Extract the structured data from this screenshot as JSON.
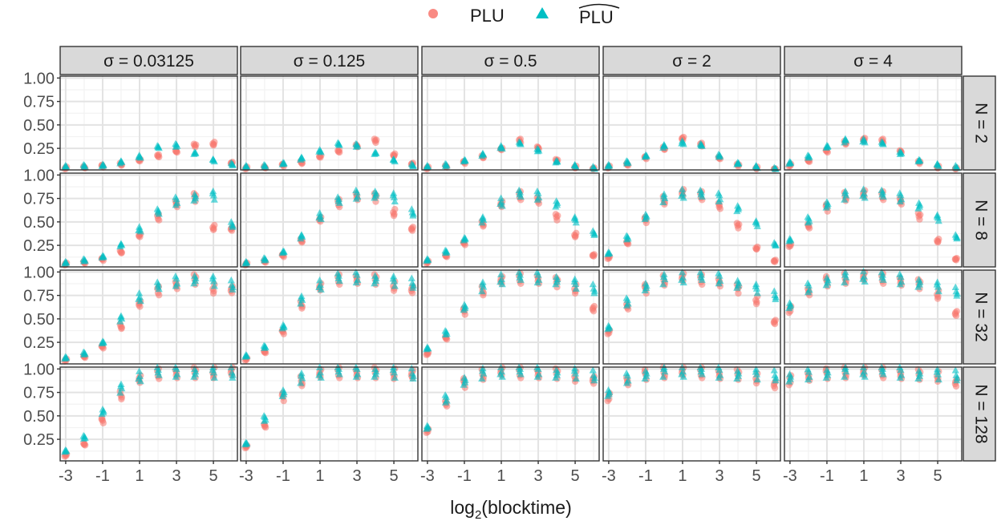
{
  "legend": {
    "items": [
      {
        "label": "PLU",
        "color": "#F8766D",
        "shape": "circle"
      },
      {
        "label": "PLU",
        "color": "#00BFC4",
        "shape": "triangle",
        "hat": true
      }
    ]
  },
  "axes": {
    "xlabel_base": "log",
    "xlabel_sub": "2",
    "xlabel_rest": "(blocktime)",
    "x_ticks": [
      "-3",
      "-1",
      "1",
      "3",
      "5"
    ],
    "y_ticks": [
      "0.25",
      "0.50",
      "0.75",
      "1.00"
    ]
  },
  "chart_data": {
    "type": "scatter",
    "facet_cols": [
      "σ = 0.03125",
      "σ = 0.125",
      "σ = 0.5",
      "σ = 2",
      "σ = 4"
    ],
    "facet_rows": [
      "N = 2",
      "N = 8",
      "N = 32",
      "N = 128"
    ],
    "x": [
      -3,
      -2,
      -1,
      0,
      1,
      2,
      3,
      4,
      5,
      6
    ],
    "xlim": [
      -3.3,
      6.3
    ],
    "ylim": [
      0.02,
      1.02
    ],
    "grid": true,
    "legend_position": "top",
    "series": [
      {
        "name": "PLU",
        "color": "#F8766D",
        "values": [
          [
            [
              0.04,
              0.05,
              0.06,
              0.08,
              0.12,
              0.17,
              0.22,
              0.28,
              0.3,
              0.09
            ],
            [
              0.04,
              0.05,
              0.07,
              0.1,
              0.16,
              0.22,
              0.28,
              0.33,
              0.18,
              0.08
            ],
            [
              0.04,
              0.06,
              0.1,
              0.16,
              0.24,
              0.33,
              0.26,
              0.12,
              0.05,
              0.03
            ],
            [
              0.05,
              0.08,
              0.15,
              0.25,
              0.35,
              0.29,
              0.15,
              0.07,
              0.04,
              0.02
            ],
            [
              0.07,
              0.12,
              0.22,
              0.31,
              0.34,
              0.33,
              0.22,
              0.1,
              0.05,
              0.03
            ]
          ],
          [
            [
              0.05,
              0.07,
              0.1,
              0.18,
              0.35,
              0.55,
              0.7,
              0.76,
              0.44,
              0.42
            ],
            [
              0.05,
              0.08,
              0.14,
              0.3,
              0.52,
              0.7,
              0.78,
              0.76,
              0.6,
              0.42
            ],
            [
              0.07,
              0.14,
              0.27,
              0.48,
              0.68,
              0.78,
              0.74,
              0.55,
              0.36,
              0.14
            ],
            [
              0.12,
              0.28,
              0.52,
              0.73,
              0.8,
              0.78,
              0.68,
              0.46,
              0.22,
              0.08
            ],
            [
              0.25,
              0.46,
              0.65,
              0.77,
              0.79,
              0.78,
              0.73,
              0.56,
              0.3,
              0.1
            ]
          ],
          [
            [
              0.06,
              0.1,
              0.2,
              0.42,
              0.65,
              0.8,
              0.87,
              0.92,
              0.82,
              0.8
            ],
            [
              0.07,
              0.15,
              0.36,
              0.65,
              0.83,
              0.92,
              0.93,
              0.92,
              0.85,
              0.8
            ],
            [
              0.13,
              0.3,
              0.58,
              0.8,
              0.9,
              0.93,
              0.93,
              0.89,
              0.82,
              0.6
            ],
            [
              0.36,
              0.64,
              0.82,
              0.91,
              0.93,
              0.92,
              0.9,
              0.82,
              0.7,
              0.46
            ],
            [
              0.6,
              0.8,
              0.9,
              0.93,
              0.94,
              0.93,
              0.91,
              0.87,
              0.76,
              0.55
            ]
          ],
          [
            [
              0.08,
              0.2,
              0.45,
              0.72,
              0.88,
              0.95,
              0.96,
              0.96,
              0.96,
              0.96
            ],
            [
              0.17,
              0.4,
              0.7,
              0.87,
              0.94,
              0.96,
              0.96,
              0.96,
              0.95,
              0.93
            ],
            [
              0.34,
              0.64,
              0.85,
              0.94,
              0.96,
              0.96,
              0.96,
              0.95,
              0.92,
              0.87
            ],
            [
              0.7,
              0.88,
              0.94,
              0.96,
              0.96,
              0.96,
              0.95,
              0.94,
              0.9,
              0.82
            ],
            [
              0.88,
              0.93,
              0.95,
              0.96,
              0.96,
              0.96,
              0.95,
              0.94,
              0.92,
              0.84
            ]
          ]
        ]
      },
      {
        "name": "PLU (hat)",
        "color": "#00BFC4",
        "values": [
          [
            [
              0.05,
              0.06,
              0.07,
              0.1,
              0.16,
              0.26,
              0.28,
              0.2,
              0.12,
              0.08
            ],
            [
              0.05,
              0.06,
              0.09,
              0.14,
              0.22,
              0.29,
              0.28,
              0.2,
              0.12,
              0.07
            ],
            [
              0.05,
              0.07,
              0.12,
              0.18,
              0.26,
              0.3,
              0.23,
              0.11,
              0.06,
              0.04
            ],
            [
              0.06,
              0.1,
              0.17,
              0.27,
              0.31,
              0.28,
              0.17,
              0.09,
              0.05,
              0.03
            ],
            [
              0.09,
              0.16,
              0.27,
              0.33,
              0.33,
              0.3,
              0.2,
              0.12,
              0.07,
              0.05
            ]
          ],
          [
            [
              0.06,
              0.09,
              0.13,
              0.25,
              0.42,
              0.6,
              0.72,
              0.77,
              0.78,
              0.47
            ],
            [
              0.06,
              0.1,
              0.18,
              0.34,
              0.56,
              0.72,
              0.79,
              0.8,
              0.76,
              0.6
            ],
            [
              0.09,
              0.18,
              0.32,
              0.52,
              0.71,
              0.79,
              0.78,
              0.7,
              0.52,
              0.38
            ],
            [
              0.16,
              0.33,
              0.56,
              0.75,
              0.8,
              0.79,
              0.76,
              0.65,
              0.48,
              0.26
            ],
            [
              0.3,
              0.52,
              0.69,
              0.78,
              0.8,
              0.79,
              0.76,
              0.68,
              0.54,
              0.34
            ]
          ],
          [
            [
              0.08,
              0.13,
              0.25,
              0.5,
              0.73,
              0.84,
              0.9,
              0.93,
              0.9,
              0.86
            ],
            [
              0.1,
              0.2,
              0.42,
              0.7,
              0.86,
              0.93,
              0.94,
              0.93,
              0.9,
              0.88
            ],
            [
              0.18,
              0.35,
              0.63,
              0.84,
              0.92,
              0.94,
              0.94,
              0.92,
              0.87,
              0.82
            ],
            [
              0.4,
              0.68,
              0.85,
              0.92,
              0.94,
              0.94,
              0.93,
              0.88,
              0.82,
              0.75
            ],
            [
              0.63,
              0.83,
              0.91,
              0.94,
              0.95,
              0.94,
              0.92,
              0.89,
              0.84,
              0.79
            ]
          ],
          [
            [
              0.12,
              0.27,
              0.55,
              0.79,
              0.92,
              0.96,
              0.97,
              0.97,
              0.96,
              0.96
            ],
            [
              0.2,
              0.47,
              0.75,
              0.9,
              0.96,
              0.97,
              0.97,
              0.97,
              0.96,
              0.95
            ],
            [
              0.37,
              0.68,
              0.88,
              0.95,
              0.97,
              0.97,
              0.97,
              0.96,
              0.95,
              0.93
            ],
            [
              0.73,
              0.9,
              0.95,
              0.97,
              0.97,
              0.97,
              0.96,
              0.95,
              0.94,
              0.93
            ],
            [
              0.89,
              0.94,
              0.96,
              0.97,
              0.97,
              0.97,
              0.96,
              0.95,
              0.94,
              0.93
            ]
          ]
        ]
      }
    ]
  }
}
